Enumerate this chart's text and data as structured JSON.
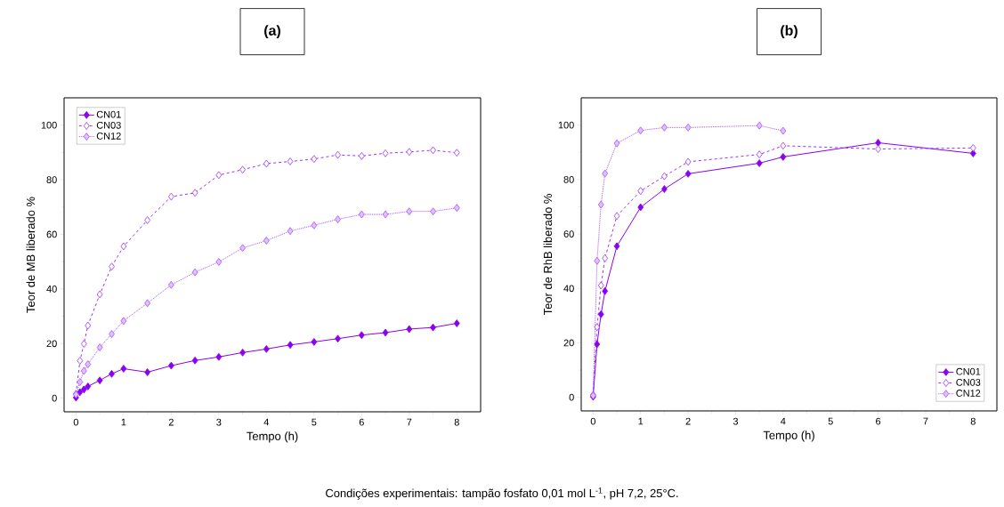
{
  "chart_data": [
    {
      "type": "line",
      "title": "(a)",
      "xlabel": "Tempo (h)",
      "ylabel": "Teor de MB liberado %",
      "x": [
        0,
        0.083,
        0.167,
        0.25,
        0.5,
        0.75,
        1,
        1.5,
        2,
        2.5,
        3,
        3.5,
        4,
        4.5,
        5,
        5.5,
        6,
        6.5,
        7,
        7.5,
        8
      ],
      "series": [
        {
          "name": "CN01",
          "color": "#8a00f0",
          "line_style": "solid",
          "marker": "diamond",
          "values": [
            0.2,
            2.2,
            3.2,
            4.3,
            6.5,
            8.9,
            10.8,
            9.5,
            11.9,
            13.8,
            15.1,
            16.7,
            18.0,
            19.5,
            20.6,
            21.8,
            23.1,
            24.0,
            25.3,
            25.9,
            27.4
          ]
        },
        {
          "name": "CN03",
          "color": "#9b30ff",
          "line_style": "dashed",
          "marker": "diamond",
          "values": [
            1.6,
            13.7,
            19.9,
            26.6,
            38.0,
            48.2,
            55.6,
            65.2,
            73.8,
            75.2,
            81.7,
            83.7,
            85.9,
            86.7,
            87.6,
            89.1,
            88.7,
            89.7,
            90.2,
            90.8,
            89.9
          ]
        },
        {
          "name": "CN12",
          "color": "#a64dff",
          "line_style": "dotted",
          "marker": "diamond",
          "values": [
            1.3,
            5.9,
            10.0,
            12.4,
            18.6,
            23.5,
            28.3,
            34.8,
            41.5,
            46.1,
            49.9,
            55.0,
            57.7,
            61.2,
            63.3,
            65.5,
            67.3,
            67.3,
            68.4,
            68.4,
            69.7
          ]
        }
      ],
      "xlim": [
        -0.25,
        8.5
      ],
      "ylim": [
        -5,
        110
      ],
      "xticks": [
        0,
        1,
        2,
        3,
        4,
        5,
        6,
        7,
        8
      ],
      "yticks": [
        0,
        20,
        40,
        60,
        80,
        100
      ],
      "grid": false,
      "legend": "top left",
      "annotations": [
        "Condições experimentais: tampão fosfato 0,01 mol L$^{-1}$, pH 7,2, 25°C."
      ]
    },
    {
      "type": "line",
      "title": "(b)",
      "xlabel": "Tempo (h)",
      "ylabel": "Teor de RhB liberado %",
      "x": [
        0,
        0.083,
        0.167,
        0.25,
        0.5,
        1,
        1.5,
        2,
        3.5,
        4,
        6,
        8
      ],
      "series": [
        {
          "name": "CN01",
          "color": "#8a00f0",
          "line_style": "solid",
          "marker": "diamond",
          "values": [
            0.2,
            19.5,
            30.5,
            39.0,
            55.5,
            69.8,
            76.5,
            82.1,
            86.0,
            88.3,
            93.5,
            89.6
          ]
        },
        {
          "name": "CN03",
          "color": "#9b30ff",
          "line_style": "dashed",
          "marker": "diamond",
          "values": [
            0.9,
            25.8,
            41.1,
            51.1,
            66.6,
            75.8,
            81.2,
            86.5,
            89.2,
            92.4,
            91.2,
            91.6
          ]
        },
        {
          "name": "CN12",
          "color": "#a64dff",
          "line_style": "dotted",
          "marker": "diamond",
          "x": [
            0,
            0.083,
            0.167,
            0.25,
            0.5,
            1,
            1.5,
            2,
            3.5,
            4
          ],
          "values": [
            0.6,
            50.1,
            70.8,
            82.2,
            93.3,
            98.0,
            99.1,
            99.1,
            99.8,
            97.9
          ]
        }
      ],
      "xlim": [
        -0.25,
        8.5
      ],
      "ylim": [
        -5,
        110
      ],
      "xticks": [
        0,
        1,
        2,
        3,
        4,
        5,
        6,
        7,
        8
      ],
      "yticks": [
        0,
        20,
        40,
        60,
        80,
        100
      ],
      "grid": false,
      "legend": "bottom right"
    }
  ]
}
